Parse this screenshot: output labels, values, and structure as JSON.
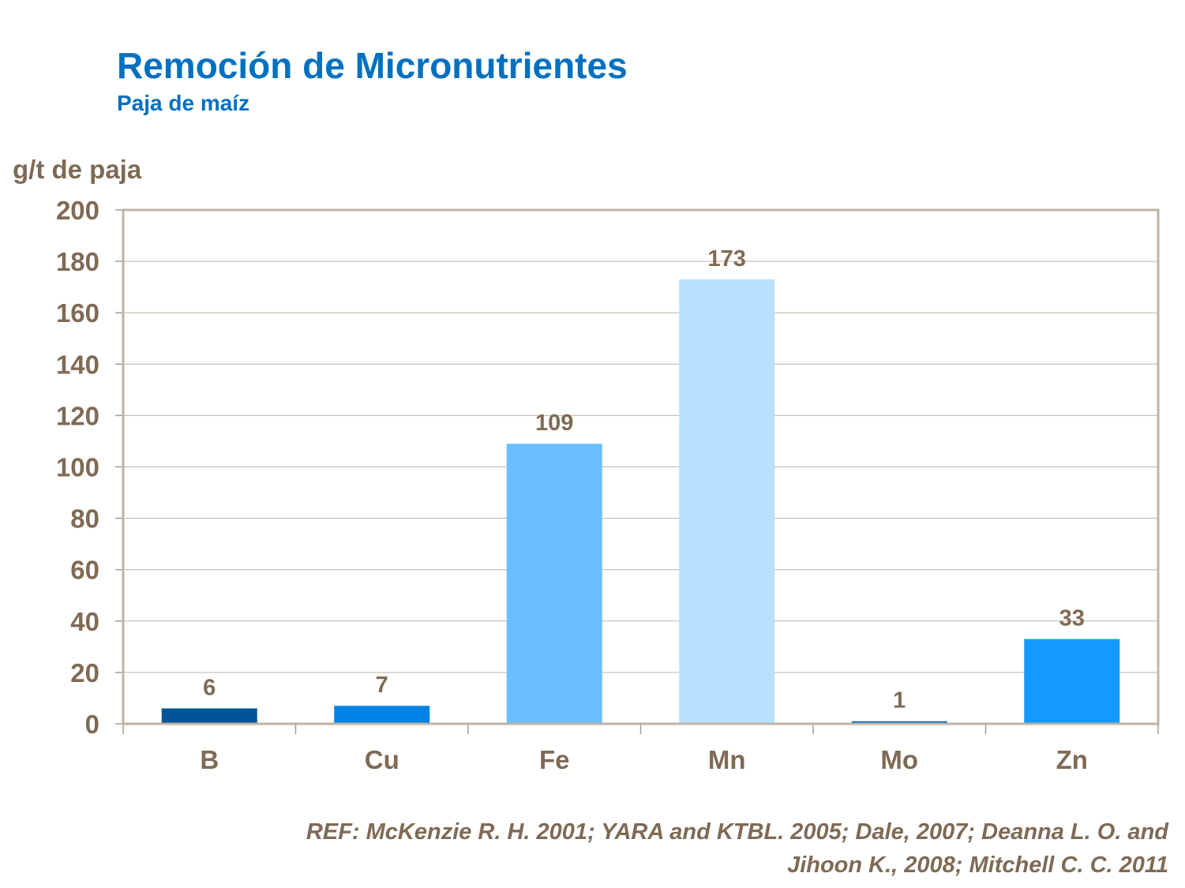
{
  "chart_data": {
    "type": "bar",
    "title": "Remoción de Micronutrientes",
    "subtitle": "Paja de maíz",
    "ylabel": "g/t de paja",
    "xlabel": "",
    "categories": [
      "B",
      "Cu",
      "Fe",
      "Mn",
      "Mo",
      "Zn"
    ],
    "values": [
      6,
      7,
      109,
      173,
      1,
      33
    ],
    "bar_colors": [
      "#005596",
      "#0083E6",
      "#6BBEFF",
      "#B9E0FF",
      "#0070C0",
      "#1399FF"
    ],
    "ylim": [
      0,
      200
    ],
    "yticks": [
      0,
      20,
      40,
      60,
      80,
      100,
      120,
      140,
      160,
      180,
      200
    ],
    "grid": true,
    "data_labels": true
  },
  "reference": {
    "line1": "REF: McKenzie R. H. 2001; YARA and KTBL. 2005; Dale, 2007; Deanna L. O. and",
    "line2": "Jihoon K.,  2008; Mitchell C. C. 2011"
  }
}
